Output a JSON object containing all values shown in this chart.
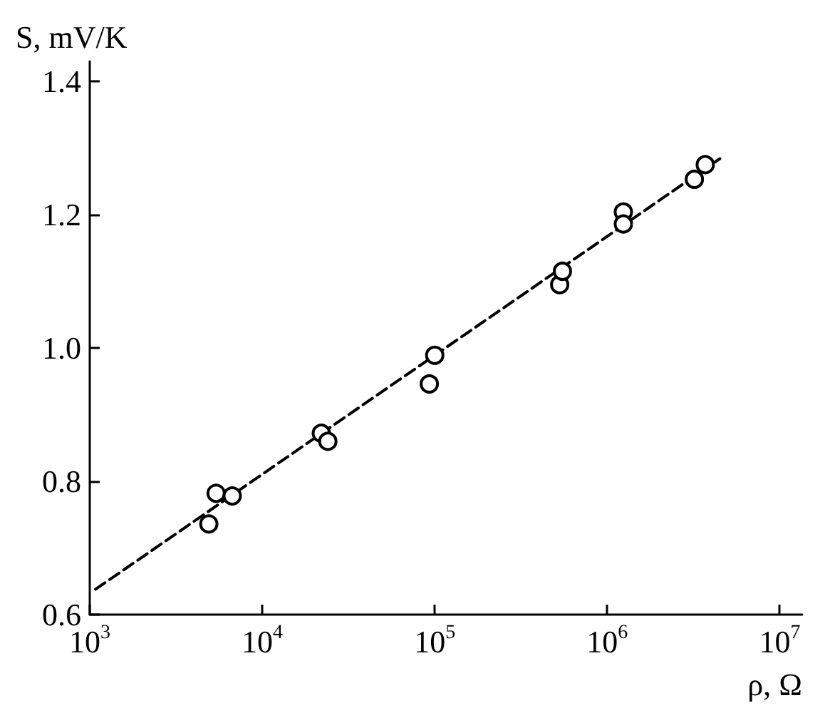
{
  "chart_data": {
    "type": "scatter",
    "xlabel": "ρ, Ω",
    "ylabel": "S, mV/K",
    "log": "x",
    "marker": "circle",
    "grid": false,
    "xlim": [
      1000,
      13500000
    ],
    "xticks": [
      {
        "value": 1000,
        "label": "10$^{3}$"
      },
      {
        "value": 10000,
        "label": "10$^{4}$"
      },
      {
        "value": 100000,
        "label": "10$^{5}$"
      },
      {
        "value": 1000000,
        "label": "10$^{6}$"
      },
      {
        "value": 10000000,
        "label": "10$^{7}$"
      }
    ],
    "ylim": [
      0.6,
      1.43
    ],
    "yticks": [
      0.6,
      0.8,
      {
        "value": 1,
        "label": "1.0"
      },
      1.2,
      1.4
    ],
    "series": [
      {
        "color": "#000000",
        "x": [
          4900,
          5400,
          6700,
          22000,
          24000,
          93000,
          100000,
          530000,
          550000,
          1240000,
          1240000,
          3200000,
          3700000
        ],
        "values": [
          0.736,
          0.782,
          0.778,
          0.872,
          0.86,
          0.946,
          0.989,
          1.095,
          1.115,
          1.204,
          1.186,
          1.253,
          1.275
        ]
      },
      {
        "type": "line",
        "color": "#000000",
        "line_style": "dashed",
        "marker": "none",
        "x": [
          1080,
          4500000
        ],
        "values": [
          0.638,
          1.284
        ]
      }
    ]
  }
}
